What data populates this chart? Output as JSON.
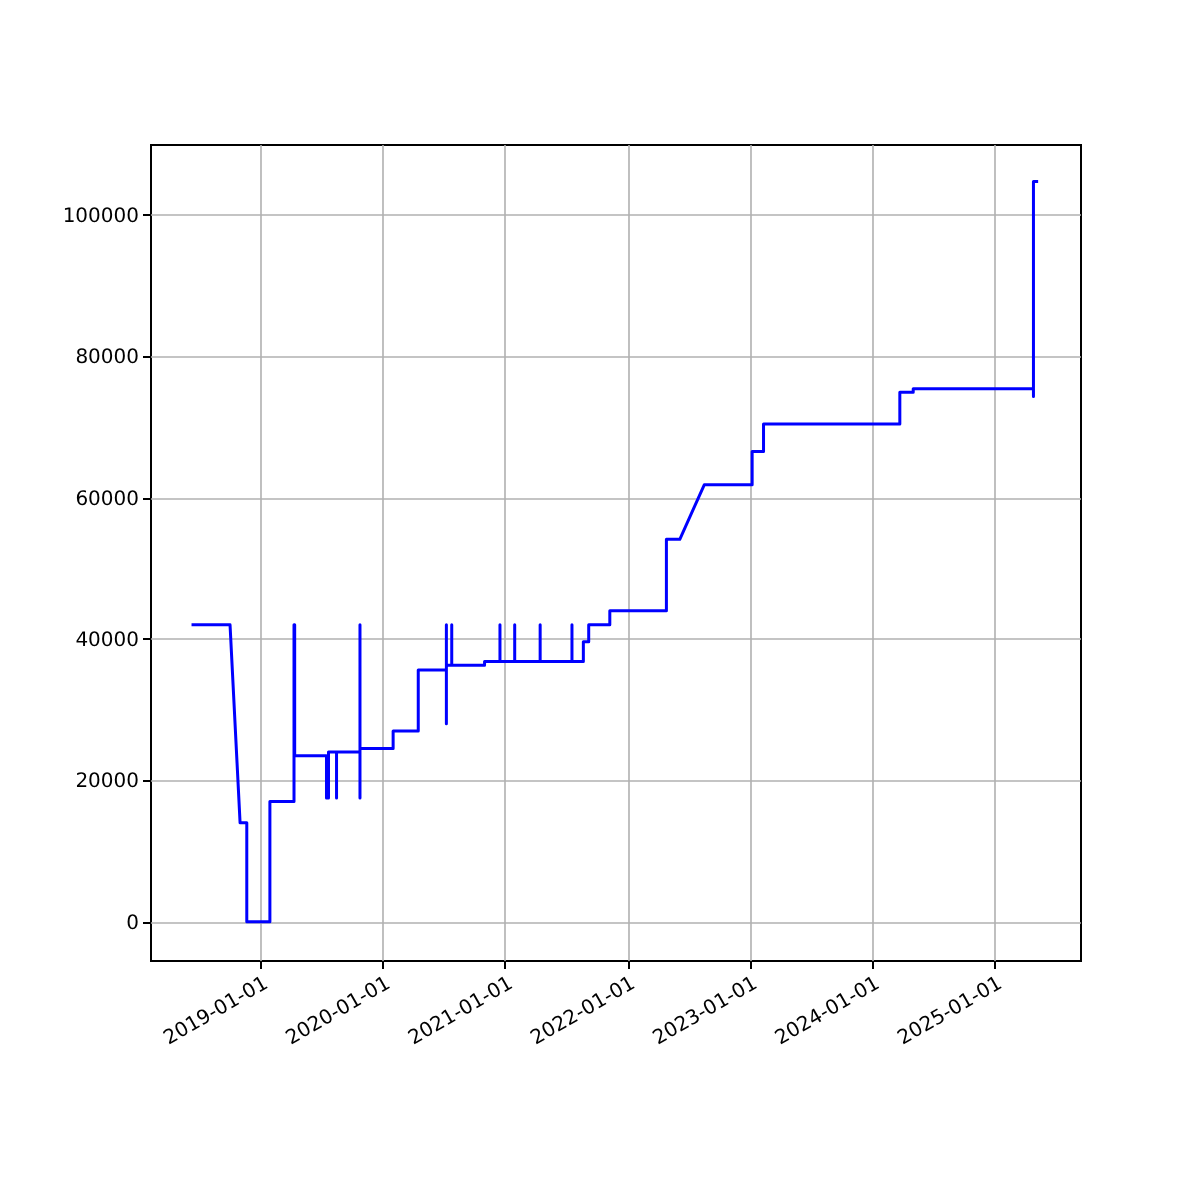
{
  "chart_data": {
    "type": "line",
    "x": [
      "2018-06-10",
      "2018-10-03",
      "2018-11-02",
      "2018-11-22",
      "2018-11-22",
      "2019-01-30",
      "2019-01-30",
      "2019-04-12",
      "2019-04-12",
      "2019-04-14",
      "2019-04-14",
      "2019-07-18",
      "2019-07-18",
      "2019-07-24",
      "2019-07-24",
      "2019-08-17",
      "2019-08-17",
      "2019-08-17",
      "2019-10-26",
      "2019-10-26",
      "2019-10-26",
      "2019-10-26",
      "2020-02-02",
      "2020-02-02",
      "2020-04-17",
      "2020-04-17",
      "2020-07-10",
      "2020-07-10",
      "2020-07-10",
      "2020-07-10",
      "2020-07-26",
      "2020-07-26",
      "2020-07-26",
      "2020-11-01",
      "2020-11-01",
      "2020-12-17",
      "2020-12-17",
      "2020-12-17",
      "2021-01-30",
      "2021-01-30",
      "2021-01-30",
      "2021-04-16",
      "2021-04-16",
      "2021-04-16",
      "2021-07-20",
      "2021-07-20",
      "2021-07-20",
      "2021-08-23",
      "2021-08-23",
      "2021-09-08",
      "2021-09-08",
      "2021-11-10",
      "2021-11-10",
      "2022-04-28",
      "2022-04-28",
      "2022-06-07",
      "2022-08-19",
      "2023-01-09",
      "2023-01-09",
      "2023-02-12",
      "2023-02-12",
      "2024-03-25",
      "2024-03-25",
      "2024-05-04",
      "2024-05-04",
      "2025-04-28",
      "2025-04-28",
      "2025-04-28",
      "2025-05-12"
    ],
    "series": [
      {
        "color": "#0000ff",
        "values": [
          42000,
          42000,
          14000,
          14000,
          0,
          0,
          17000,
          17000,
          42000,
          42000,
          23500,
          23500,
          17500,
          17500,
          24000,
          24000,
          17500,
          24000,
          24000,
          42000,
          17500,
          24500,
          24500,
          27000,
          27000,
          35600,
          35600,
          42000,
          28000,
          36300,
          36300,
          42000,
          36300,
          36300,
          36800,
          36800,
          42000,
          36800,
          36800,
          42000,
          36800,
          36800,
          42000,
          36800,
          36800,
          42000,
          36800,
          36800,
          39600,
          39600,
          42000,
          42000,
          44000,
          44000,
          54100,
          54100,
          61800,
          61800,
          66500,
          66500,
          70400,
          70400,
          74900,
          74900,
          75400,
          75400,
          74300,
          104700,
          104700
        ]
      }
    ],
    "xlim": [
      "2018-02-06",
      "2025-09-14"
    ],
    "ylim": [
      -5400,
      110000
    ],
    "xticks": [
      "2019-01-01",
      "2020-01-01",
      "2021-01-01",
      "2022-01-01",
      "2023-01-01",
      "2024-01-01",
      "2025-01-01"
    ],
    "yticks": [
      0,
      20000,
      40000,
      60000,
      80000,
      100000
    ],
    "grid": true,
    "line_style": "solid",
    "marker": "none"
  }
}
